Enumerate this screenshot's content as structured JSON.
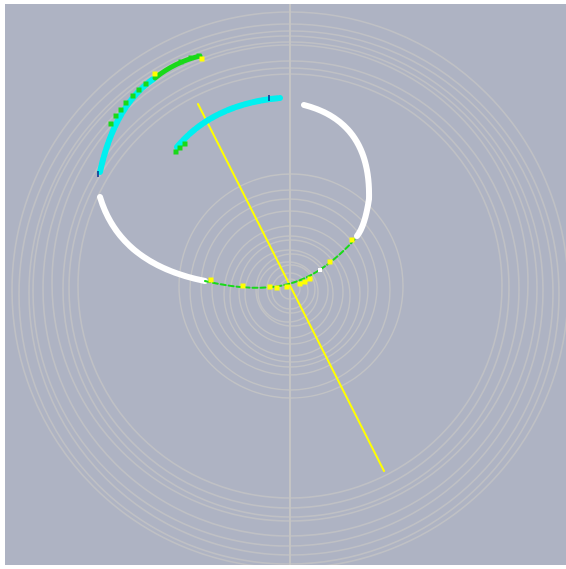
{
  "scene": {
    "background_color": "#aeb3c3",
    "detector_color": "#c4c4c4",
    "colors": {
      "white_track": "#ffffff",
      "cyan_track": "#00f0f0",
      "green_track": "#19d919",
      "yellow_hits": "#ffff00",
      "yellow_line": "#ffff00",
      "marker": "#0a2a8a"
    }
  }
}
